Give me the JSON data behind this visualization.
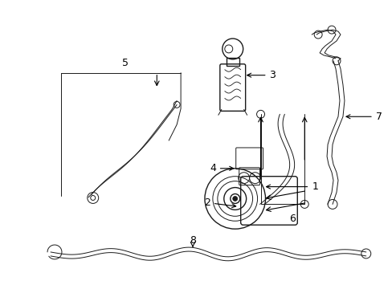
{
  "bg_color": "#ffffff",
  "lc": "#1a1a1a",
  "figsize": [
    4.89,
    3.6
  ],
  "dpi": 100,
  "lw": 1.0,
  "lw_thin": 0.7,
  "fs": 9
}
